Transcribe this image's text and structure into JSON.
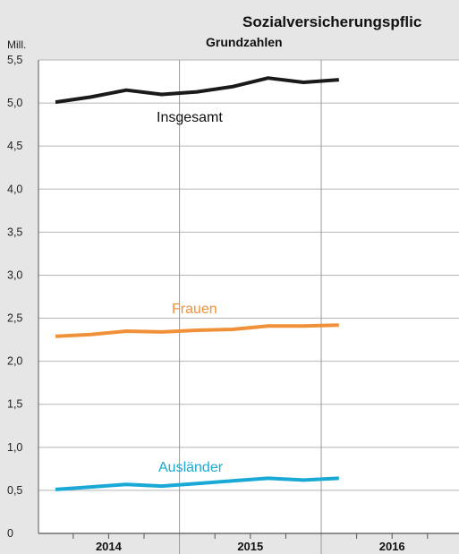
{
  "chart_data": {
    "type": "line",
    "title": "Sozialversicherungspflic",
    "subtitle": "Grundzahlen",
    "ylabel": "Mill.",
    "ylim": [
      0,
      5.5
    ],
    "yticks": [
      "0",
      "0,5",
      "1,0",
      "1,5",
      "2,0",
      "2,5",
      "3,0",
      "3,5",
      "4,0",
      "4,5",
      "5,0",
      "5,5"
    ],
    "year_labels": [
      "2014",
      "2015",
      "2016"
    ],
    "x": [
      "2014-Q1",
      "2014-Q2",
      "2014-Q3",
      "2014-Q4",
      "2015-Q1",
      "2015-Q2",
      "2015-Q3",
      "2015-Q4",
      "2016-Q1"
    ],
    "series": [
      {
        "name": "Insgesamt",
        "color": "#1a1a1a",
        "label_color": "#111111",
        "values": [
          5.01,
          5.07,
          5.15,
          5.1,
          5.13,
          5.19,
          5.29,
          5.24,
          5.27
        ]
      },
      {
        "name": "Frauen",
        "color": "#f0913a",
        "label_color": "#f0913a",
        "values": [
          2.29,
          2.31,
          2.35,
          2.34,
          2.36,
          2.37,
          2.41,
          2.41,
          2.42
        ]
      },
      {
        "name": "Ausländer",
        "color": "#1aa9d6",
        "label_color": "#1aa9d6",
        "values": [
          0.51,
          0.54,
          0.57,
          0.55,
          0.58,
          0.61,
          0.64,
          0.62,
          0.64
        ]
      }
    ],
    "grid": true,
    "legend": "inline labels"
  }
}
